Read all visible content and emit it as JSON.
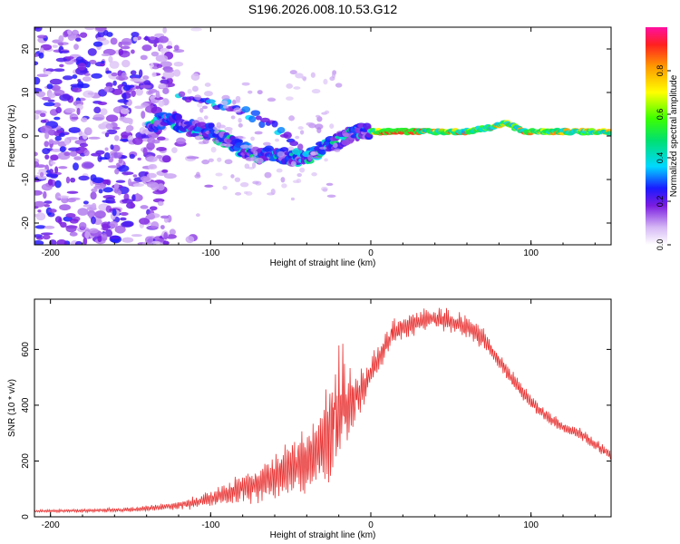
{
  "figure_title": "S196.2026.008.10.53.G12",
  "chart_data": [
    {
      "type": "heatmap",
      "panel": "top",
      "xlabel": "Height of straight line (km)",
      "ylabel": "Frequency (Hz)",
      "xlim": [
        -210,
        150
      ],
      "ylim": [
        -25,
        25
      ],
      "xticks": [
        -200,
        -100,
        0,
        100
      ],
      "yticks": [
        -20,
        -10,
        0,
        10,
        20
      ],
      "colorbar": {
        "label": "Normalized spectral amplitude",
        "range": [
          0,
          1
        ],
        "ticks": [
          0.0,
          0.2,
          0.4,
          0.6,
          0.8
        ]
      },
      "ridge": {
        "description_points": [
          {
            "x": -135,
            "y": 3
          },
          {
            "x": -125,
            "y": 4
          },
          {
            "x": -115,
            "y": 2
          },
          {
            "x": -100,
            "y": 1
          },
          {
            "x": -90,
            "y": -1
          },
          {
            "x": -80,
            "y": -3
          },
          {
            "x": -70,
            "y": -5
          },
          {
            "x": -60,
            "y": -4
          },
          {
            "x": -50,
            "y": -5
          },
          {
            "x": -40,
            "y": -5
          },
          {
            "x": -30,
            "y": -3
          },
          {
            "x": -20,
            "y": -1
          },
          {
            "x": -10,
            "y": 1
          },
          {
            "x": 0,
            "y": 1
          },
          {
            "x": 20,
            "y": 1
          },
          {
            "x": 40,
            "y": 1
          },
          {
            "x": 60,
            "y": 1
          },
          {
            "x": 75,
            "y": 2
          },
          {
            "x": 85,
            "y": 3
          },
          {
            "x": 95,
            "y": 1
          },
          {
            "x": 110,
            "y": 1
          },
          {
            "x": 150,
            "y": 1
          }
        ],
        "upper_branch": [
          {
            "x": -120,
            "y": 10
          },
          {
            "x": -105,
            "y": 8
          },
          {
            "x": -90,
            "y": 7
          },
          {
            "x": -75,
            "y": 5
          },
          {
            "x": -60,
            "y": 2
          },
          {
            "x": -45,
            "y": -3
          },
          {
            "x": -35,
            "y": -5
          }
        ]
      }
    },
    {
      "type": "line",
      "panel": "bottom",
      "xlabel": "Height of straight line (km)",
      "ylabel": "SNR (10 * v/v)",
      "xlim": [
        -210,
        150
      ],
      "ylim": [
        0,
        780
      ],
      "xticks": [
        -200,
        -100,
        0,
        100
      ],
      "yticks": [
        0,
        200,
        400,
        600
      ],
      "series": [
        {
          "name": "SNR",
          "color": "#e83232",
          "envelope": {
            "x": [
              -210,
              -180,
              -150,
              -130,
              -110,
              -90,
              -70,
              -55,
              -40,
              -30,
              -25,
              -20,
              -15,
              -10,
              -5,
              0,
              10,
              20,
              30,
              40,
              50,
              60,
              70,
              80,
              90,
              100,
              110,
              120,
              130,
              140,
              150
            ],
            "y": [
              20,
              22,
              25,
              35,
              50,
              80,
              120,
              160,
              200,
              250,
              300,
              360,
              400,
              430,
              460,
              520,
              620,
              680,
              700,
              710,
              700,
              680,
              640,
              560,
              480,
              410,
              360,
              320,
              300,
              260,
              220
            ],
            "amplitude": [
              5,
              6,
              8,
              12,
              20,
              45,
              70,
              90,
              110,
              160,
              230,
              200,
              140,
              100,
              70,
              50,
              45,
              45,
              40,
              40,
              40,
              40,
              35,
              30,
              30,
              25,
              25,
              20,
              20,
              20,
              20
            ]
          }
        }
      ]
    }
  ]
}
